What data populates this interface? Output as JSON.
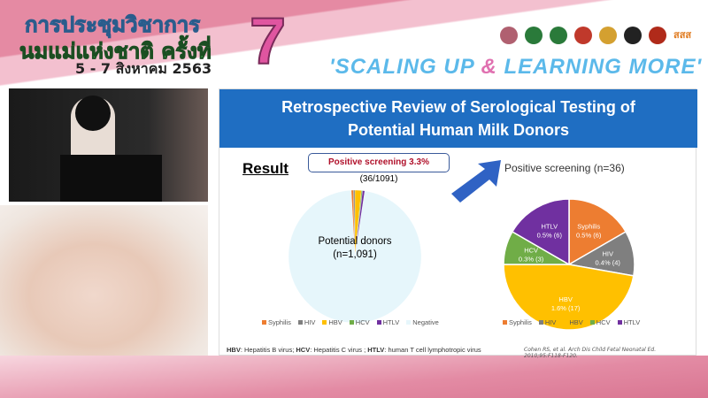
{
  "header": {
    "thai_line1": "การประชุมวิชาการ",
    "thai_line2": "นมแม่แห่งชาติ ครั้งที่",
    "thai_dates": "5 - 7 สิงหาคม 2563",
    "number": "7",
    "slogan_a": "'SCALING UP ",
    "slogan_amp": "&",
    "slogan_b": " LEARNING MORE'",
    "logo_text": "สสส"
  },
  "slide": {
    "title_line1": "Retrospective Review of Serological Testing of",
    "title_line2": "Potential Human Milk Donors",
    "result_label": "Result",
    "callout_bold": "Positive screening 3.3%",
    "callout_rest": " (36/1091)",
    "left_label1": "Potential donors",
    "left_label2": "(n=1,091)",
    "footnote_parts": [
      "HBV",
      ": Hepatitis B virus; ",
      "HCV",
      ": Hepatitis C virus ; ",
      "HTLV",
      ": human T cell lymphotropic virus"
    ],
    "citation": "Cohen RS, et al. Arch Dis Child Fetal Neonatal Ed. 2010;95:F118-F120."
  },
  "chart_data": [
    {
      "type": "pie",
      "title": "",
      "categories": [
        "Syphilis",
        "HIV",
        "HBV",
        "HCV",
        "HTLV",
        "Negative"
      ],
      "values": [
        6,
        4,
        17,
        3,
        6,
        1055
      ],
      "colors": [
        "#ed7d31",
        "#7f7f7f",
        "#ffc000",
        "#70ad47",
        "#7030a0",
        "#e6f6fb"
      ],
      "legend": "bottom"
    },
    {
      "type": "pie",
      "title": "Positive screening (n=36)",
      "categories": [
        "Syphilis",
        "HIV",
        "HBV",
        "HCV",
        "HTLV"
      ],
      "values": [
        6,
        4,
        17,
        3,
        6
      ],
      "data_labels": [
        "0.5% (6)",
        "0.4% (4)",
        "1.6% (17)",
        "0.3% (3)",
        "0.5% (6)"
      ],
      "colors": [
        "#ed7d31",
        "#7f7f7f",
        "#ffc000",
        "#70ad47",
        "#7030a0"
      ],
      "legend": "bottom"
    }
  ]
}
